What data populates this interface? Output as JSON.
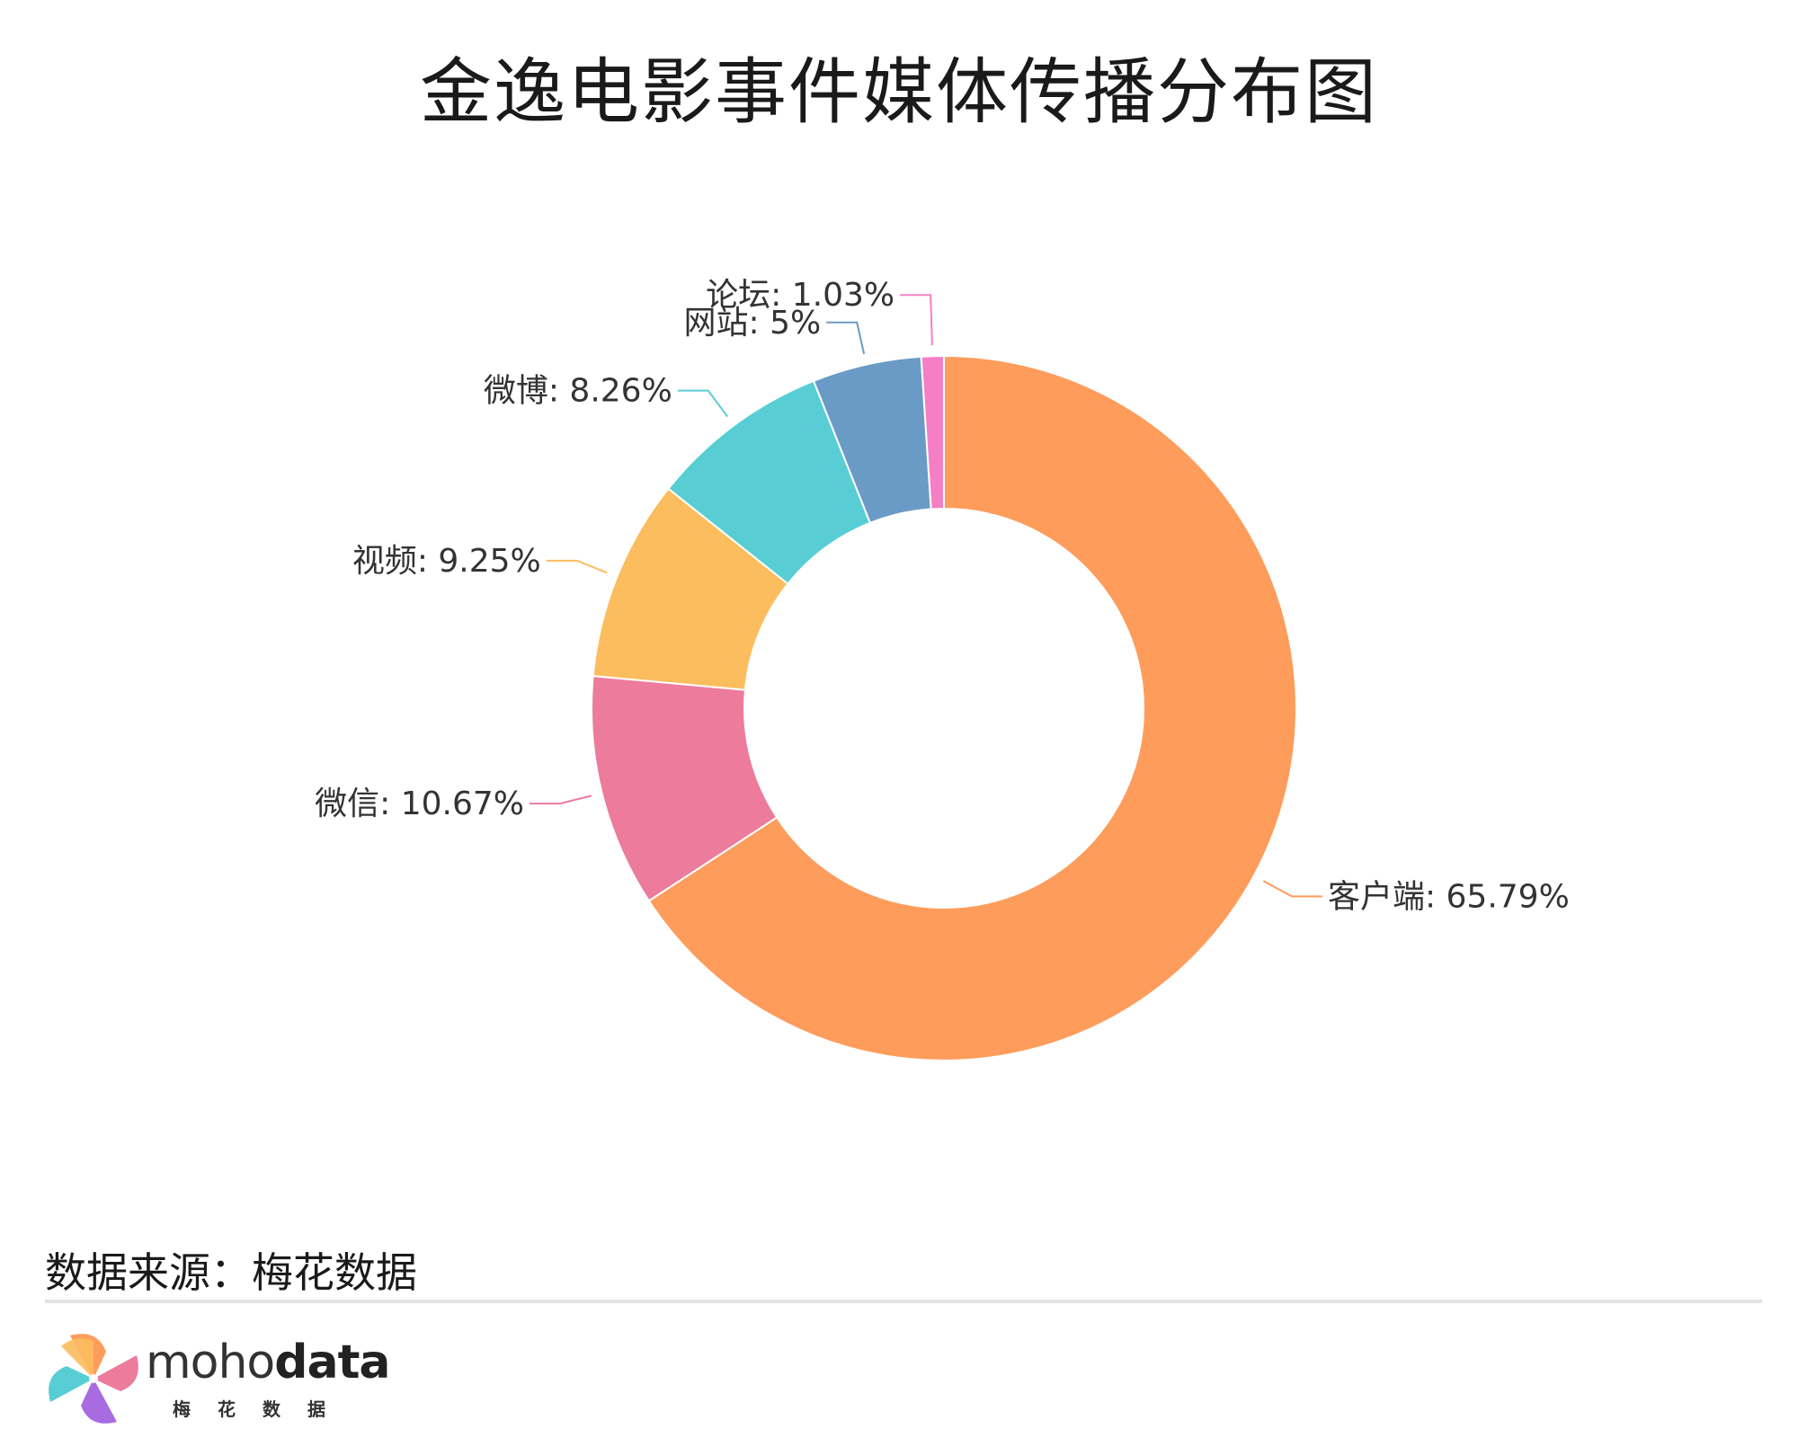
{
  "title": "金逸电影事件媒体传播分布图",
  "source": "数据来源：梅花数据",
  "brand": {
    "light": "moho",
    "bold": "data",
    "sub": "梅花数据"
  },
  "colors": {
    "客户端": "#fe9c5b",
    "微信": "#ec7b9c",
    "视频": "#fcbd5e",
    "微博": "#58ced4",
    "网站": "#6a9bc6",
    "论坛": "#f57fc5"
  },
  "chart_data": {
    "type": "pie",
    "variant": "donut",
    "series": [
      {
        "name": "客户端",
        "value": 65.79,
        "label": "客户端: 65.79%",
        "color": "#fe9c5b"
      },
      {
        "name": "微信",
        "value": 10.67,
        "label": "微信: 10.67%",
        "color": "#ec7b9c"
      },
      {
        "name": "视频",
        "value": 9.25,
        "label": "视频: 9.25%",
        "color": "#fcbd5e"
      },
      {
        "name": "微博",
        "value": 8.26,
        "label": "微博: 8.26%",
        "color": "#58ced4"
      },
      {
        "name": "网站",
        "value": 5,
        "label": "网站: 5%",
        "color": "#6a9bc6"
      },
      {
        "name": "论坛",
        "value": 1.03,
        "label": "论坛: 1.03%",
        "color": "#f57fc5"
      }
    ],
    "start_angle": "12 o'clock",
    "direction": "clockwise"
  }
}
